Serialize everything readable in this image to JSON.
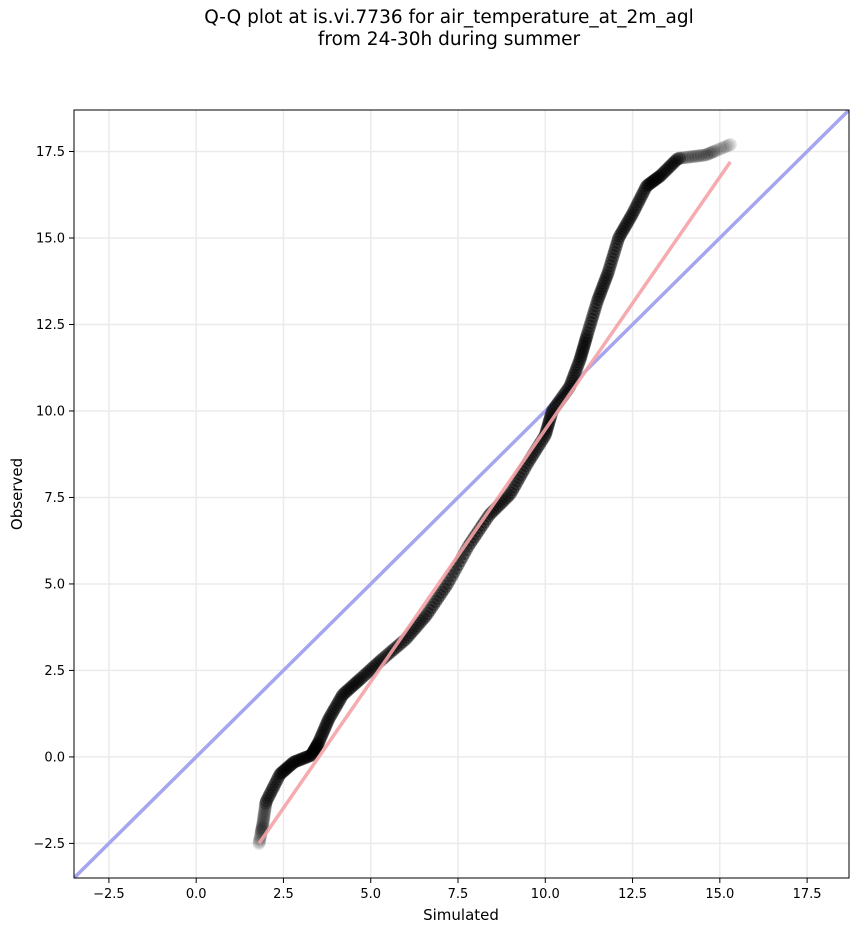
{
  "chart_data": {
    "type": "scatter",
    "title_line1": "Q-Q plot at is.vi.7736 for air_temperature_at_2m_agl",
    "title_line2": "from 24-30h during summer",
    "xlabel": "Simulated",
    "ylabel": "Observed",
    "xlim": [
      -3.5,
      18.7
    ],
    "ylim": [
      -3.5,
      18.7
    ],
    "xticks": [
      -2.5,
      0.0,
      2.5,
      5.0,
      7.5,
      10.0,
      12.5,
      15.0,
      17.5
    ],
    "yticks": [
      -2.5,
      0.0,
      2.5,
      5.0,
      7.5,
      10.0,
      12.5,
      15.0,
      17.5
    ],
    "xtick_labels": [
      "−2.5",
      "0.0",
      "2.5",
      "5.0",
      "7.5",
      "10.0",
      "12.5",
      "15.0",
      "17.5"
    ],
    "ytick_labels": [
      "−2.5",
      "0.0",
      "2.5",
      "5.0",
      "7.5",
      "10.0",
      "12.5",
      "15.0",
      "17.5"
    ],
    "grid": true,
    "curve_knots": [
      [
        1.8,
        -2.5
      ],
      [
        1.9,
        -2.0
      ],
      [
        2.0,
        -1.3
      ],
      [
        2.4,
        -0.5
      ],
      [
        2.8,
        -0.15
      ],
      [
        3.3,
        0.05
      ],
      [
        3.5,
        0.4
      ],
      [
        3.8,
        1.1
      ],
      [
        4.2,
        1.8
      ],
      [
        4.7,
        2.25
      ],
      [
        5.3,
        2.8
      ],
      [
        6.0,
        3.4
      ],
      [
        6.6,
        4.1
      ],
      [
        7.2,
        5.0
      ],
      [
        7.8,
        6.1
      ],
      [
        8.4,
        7.0
      ],
      [
        9.0,
        7.6
      ],
      [
        9.5,
        8.5
      ],
      [
        10.0,
        9.3
      ],
      [
        10.2,
        10.0
      ],
      [
        10.7,
        10.7
      ],
      [
        11.0,
        11.5
      ],
      [
        11.2,
        12.2
      ],
      [
        11.5,
        13.2
      ],
      [
        11.8,
        14.0
      ],
      [
        12.1,
        15.0
      ],
      [
        12.5,
        15.7
      ],
      [
        12.9,
        16.5
      ],
      [
        13.3,
        16.8
      ],
      [
        13.8,
        17.3
      ],
      [
        14.6,
        17.4
      ],
      [
        15.3,
        17.7
      ]
    ],
    "n_points": 320,
    "fit_line": {
      "x": [
        1.8,
        15.3
      ],
      "y": [
        -2.5,
        17.2
      ]
    },
    "reference_line": {
      "x": [
        -3.5,
        18.7
      ],
      "y": [
        -3.5,
        18.7
      ]
    },
    "colors": {
      "points": "#000000",
      "points_low_density": "#9a9a9a",
      "fit_line": "#f4a3a8",
      "fit_line_dense": "#8b0000",
      "reference_line": "#a6a6f0",
      "grid": "#ebebeb"
    }
  }
}
